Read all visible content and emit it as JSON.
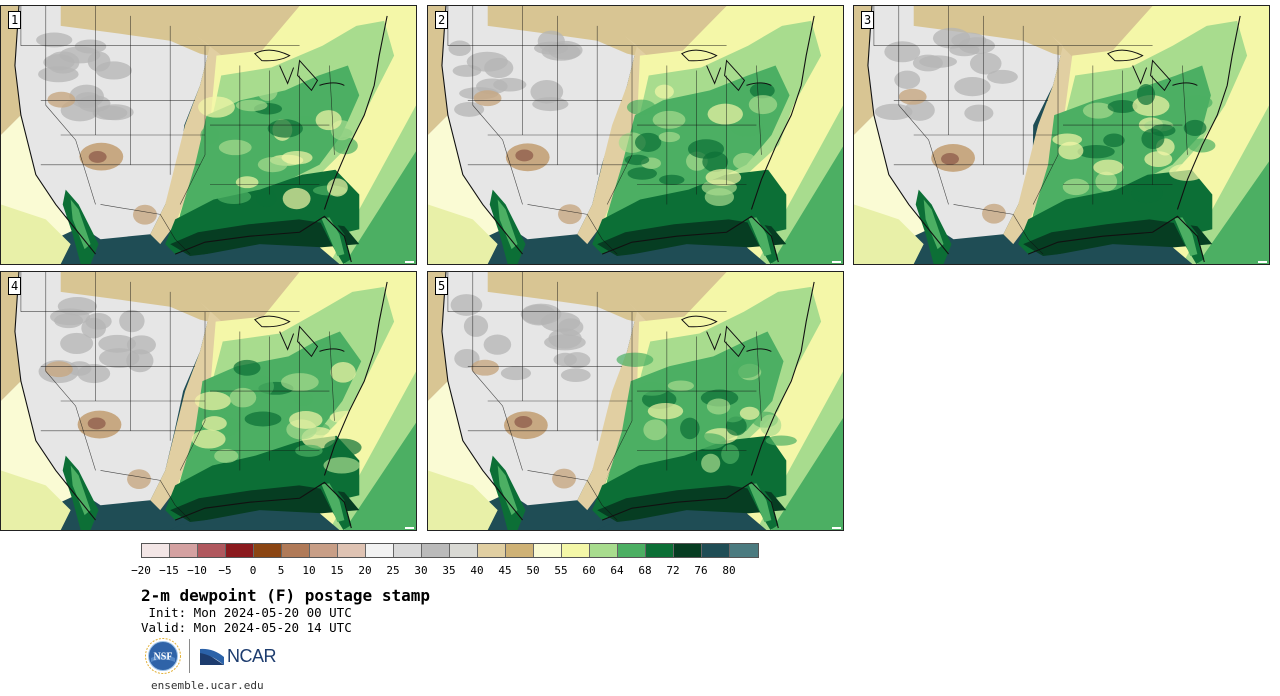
{
  "panels": [
    {
      "label": "1"
    },
    {
      "label": "2"
    },
    {
      "label": "3"
    },
    {
      "label": "4"
    },
    {
      "label": "5"
    }
  ],
  "colorbar": {
    "colors": [
      "#f3e6e6",
      "#d4a1a1",
      "#b0585e",
      "#8b1a1e",
      "#8b4513",
      "#b07a58",
      "#c89e86",
      "#dfc3b3",
      "#f2f2f2",
      "#d9d9d9",
      "#bababa",
      "#d9d9d4",
      "#e1cfa2",
      "#cfb276",
      "#fafbd4",
      "#f4f7a8",
      "#a8dc8e",
      "#4caf63",
      "#0c6f36",
      "#063d22",
      "#1f4d55",
      "#4b7b80"
    ],
    "labels": [
      "−20",
      "−15",
      "−10",
      "−5",
      "0",
      "5",
      "10",
      "15",
      "20",
      "25",
      "30",
      "35",
      "40",
      "45",
      "50",
      "55",
      "60",
      "64",
      "68",
      "72",
      "76",
      "80"
    ]
  },
  "title": "2-m dewpoint (F) postage stamp",
  "init": " Init: Mon 2024-05-20 00 UTC",
  "valid": "Valid: Mon 2024-05-20 14 UTC",
  "logos": {
    "nsf": "NSF",
    "ncar": "NCAR"
  },
  "footer_url": "ensemble.ucar.edu",
  "map_palette": {
    "ocean_gulf": "#1f4d55",
    "ocean_atlantic_far": "#f4f7a8",
    "ocean_atlantic_mid": "#a8dc8e",
    "ocean_atlantic_near": "#4caf63",
    "ocean_pacific": "#fafbd4",
    "ocean_pacific_south": "#e8f0a8",
    "west_dry": "#e6e6e6",
    "west_tan": "#c7a882",
    "west_brown": "#9c6e58",
    "rockies_gray": "#b4b4b4",
    "canada_tan": "#d8c593",
    "plains_tan": "#e1cfa2",
    "moist_light": "#f4f7a8",
    "moist_mid": "#a8dc8e",
    "moist_green": "#4caf63",
    "moist_dark": "#0c6f36",
    "moist_darkest": "#063d22",
    "border": "#111111"
  }
}
